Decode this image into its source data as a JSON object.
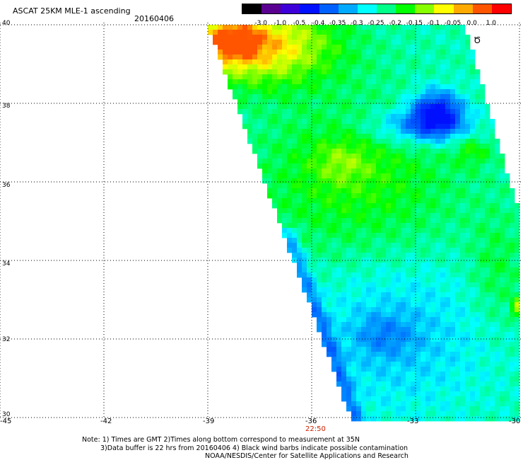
{
  "header": {
    "title": "ASCAT 25KM MLE-1 ascending",
    "date": "20160406"
  },
  "colorbar": {
    "labels": [
      "-3.0",
      "-1.0",
      "-0.5",
      "-0.4",
      "-0.35",
      "-0.3",
      "-0.25",
      "-0.2",
      "-0.15",
      "-0.1",
      "-0.05",
      "0.0",
      "1.0"
    ],
    "colors": [
      "#000000",
      "#5a0090",
      "#3e00d8",
      "#0010ff",
      "#0060ff",
      "#00aaff",
      "#00ffff",
      "#00ff88",
      "#00ff00",
      "#88ff00",
      "#ffff00",
      "#ffaa00",
      "#ff5500",
      "#ff0000"
    ]
  },
  "axes": {
    "lat_labels": [
      "40",
      "38",
      "36",
      "34",
      "32",
      "30"
    ],
    "lon_labels": [
      "-45",
      "-42",
      "-39",
      "-36",
      "-33",
      "-30"
    ],
    "lat_range": [
      30,
      40
    ],
    "lon_range": [
      -45,
      -30
    ],
    "grid": true
  },
  "pass_time": "22:50",
  "notes": {
    "line1": "Note: 1) Times are GMT 2)Times along bottom correspond to measurement at 35N",
    "line2": "3)Data buffer is 22 hrs from 20160406 4) Black wind barbs indicate possible contamination",
    "line3": "NOAA/NESDIS/Center for Satellite Applications and Research"
  },
  "contamination_marker": "Ծ"
}
